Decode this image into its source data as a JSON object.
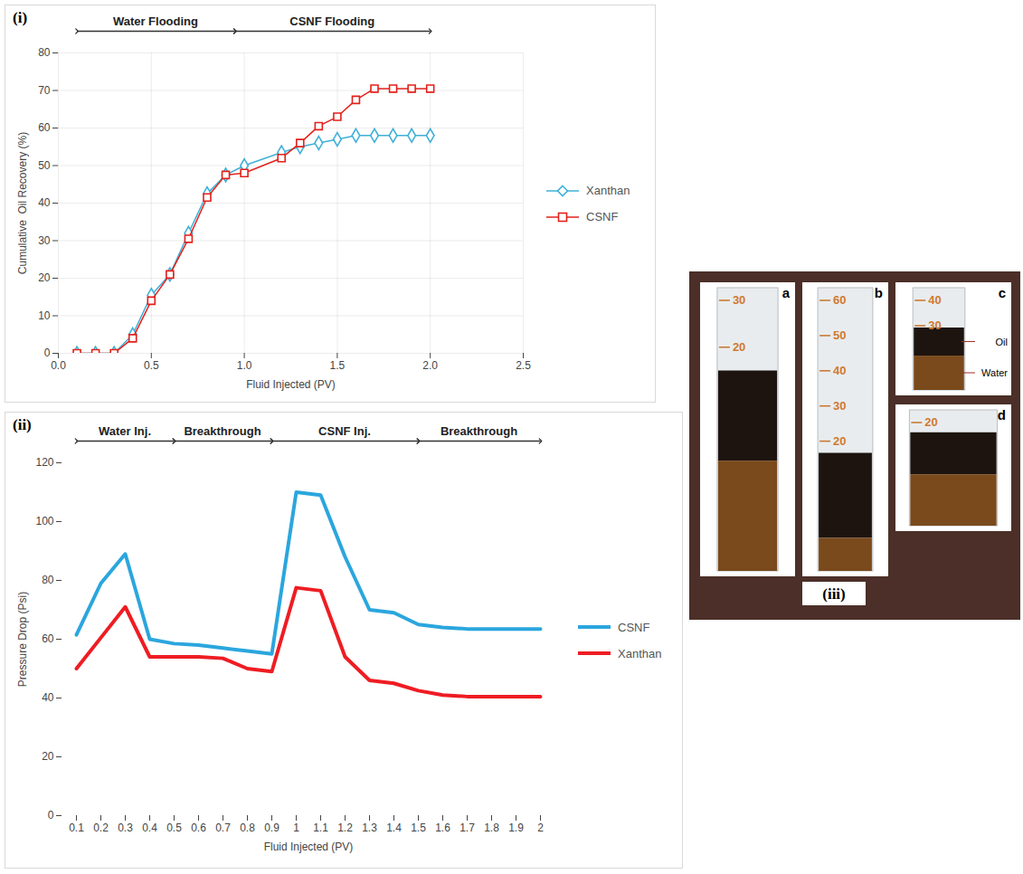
{
  "chart_data": [
    {
      "type": "line",
      "panel_label": "(i)",
      "x_label": "Fluid Injected (PV)",
      "y_label": "Cumulative  Oil Recovery (%)",
      "x": [
        0.1,
        0.2,
        0.3,
        0.4,
        0.5,
        0.6,
        0.7,
        0.8,
        0.9,
        1,
        1.2,
        1.3,
        1.4,
        1.5,
        1.6,
        1.7,
        1.8,
        1.9,
        2
      ],
      "xlim": [
        0,
        2.5
      ],
      "xticks": [
        0,
        0.5,
        1,
        1.5,
        2,
        2.5
      ],
      "ylim": [
        0,
        80
      ],
      "yticks": [
        0,
        10,
        20,
        30,
        40,
        50,
        60,
        70,
        80
      ],
      "grid": true,
      "legend": "right",
      "annotations": [
        {
          "text": "Water Flooding",
          "x_start": 0.1,
          "x_end": 0.95
        },
        {
          "text": "CSNF Flooding",
          "x_start": 0.95,
          "x_end": 2
        }
      ],
      "series": [
        {
          "name": "Xanthan",
          "color": "#3fb0d8",
          "marker": "diamond",
          "values": [
            0,
            0,
            0,
            5,
            15.5,
            21,
            32,
            42.5,
            47.5,
            50,
            53.5,
            55,
            56,
            57,
            58,
            58,
            58,
            58,
            58
          ]
        },
        {
          "name": "CSNF",
          "color": "#e3211b",
          "marker": "square",
          "values": [
            0,
            0,
            0,
            4,
            14,
            21,
            30.5,
            41.5,
            47.5,
            48,
            52,
            56,
            60.5,
            63,
            67.5,
            70.5,
            70.5,
            70.5,
            70.5
          ]
        }
      ]
    },
    {
      "type": "line",
      "panel_label": "(ii)",
      "x_label": "Fluid Injected (PV)",
      "y_label": "Pressure Drop (Psi)",
      "categories": [
        0.1,
        0.2,
        0.3,
        0.4,
        0.5,
        0.6,
        0.7,
        0.8,
        0.9,
        1,
        1.1,
        1.2,
        1.3,
        1.4,
        1.5,
        1.6,
        1.7,
        1.8,
        1.9,
        2
      ],
      "ylim": [
        0,
        120
      ],
      "yticks": [
        0,
        20,
        40,
        60,
        80,
        100,
        120
      ],
      "grid": false,
      "legend": "right",
      "annotations": [
        {
          "text": "Water Inj.",
          "x_start": 0.1,
          "x_end": 0.5
        },
        {
          "text": "Breakthrough",
          "x_start": 0.5,
          "x_end": 0.9
        },
        {
          "text": "CSNF Inj.",
          "x_start": 0.9,
          "x_end": 1.5
        },
        {
          "text": "Breakthrough",
          "x_start": 1.5,
          "x_end": 2
        }
      ],
      "series": [
        {
          "name": "CSNF",
          "color": "#2ba6de",
          "values": [
            61.5,
            79,
            89,
            60,
            58.5,
            58,
            57,
            56,
            55,
            110,
            109,
            88,
            70,
            69,
            65,
            64,
            63.5,
            63.5,
            63.5,
            63.5
          ]
        },
        {
          "name": "Xanthan",
          "color": "#ee1d23",
          "values": [
            50,
            60.5,
            71,
            54,
            54,
            54,
            53.5,
            50,
            49,
            77.5,
            76.5,
            54,
            46,
            45,
            42.5,
            41,
            40.5,
            40.5,
            40.5,
            40.5
          ]
        }
      ]
    }
  ],
  "photo_panel": {
    "label": "(iii)",
    "images": [
      {
        "letter": "a",
        "scale": [
          30,
          20
        ]
      },
      {
        "letter": "b",
        "scale": [
          60,
          50,
          40,
          30,
          20
        ]
      },
      {
        "letter": "c",
        "scale": [
          40,
          30
        ],
        "labels": [
          "Oil",
          "Water"
        ]
      },
      {
        "letter": "d",
        "scale": [
          20
        ]
      }
    ]
  }
}
